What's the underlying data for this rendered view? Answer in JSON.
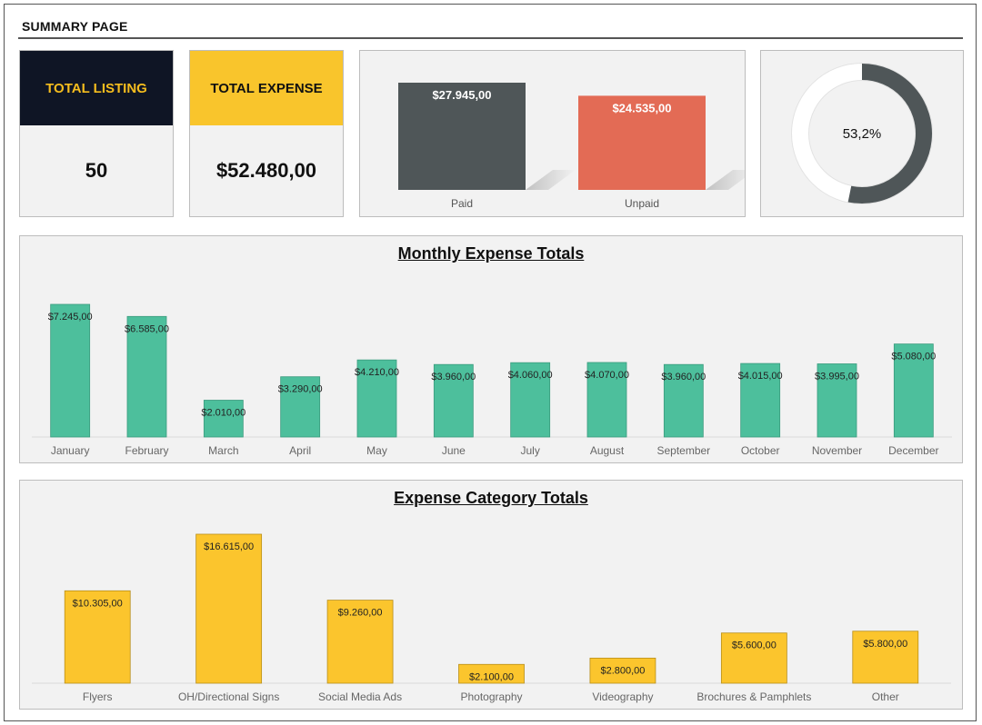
{
  "page": {
    "title": "SUMMARY PAGE"
  },
  "kpis": {
    "total_listing": {
      "label": "TOTAL LISTING",
      "value": "50"
    },
    "total_expense": {
      "label": "TOTAL EXPENSE",
      "value": "$52.480,00"
    }
  },
  "colors": {
    "paid": "#4f5658",
    "unpaid": "#e36b55",
    "monthly": "#4dbf9c",
    "category": "#fbc52d",
    "donut_track": "#ffffff",
    "donut_fill": "#4f5658"
  },
  "chart_data": [
    {
      "id": "paid-unpaid",
      "type": "bar",
      "title": "",
      "categories": [
        "Paid",
        "Unpaid"
      ],
      "values": [
        27945,
        24535
      ],
      "value_labels": [
        "$27.945,00",
        "$24.535,00"
      ],
      "ylim": [
        0,
        27945
      ],
      "grid": false
    },
    {
      "id": "paid-ratio",
      "type": "pie",
      "title": "",
      "values": [
        53.2,
        46.8
      ],
      "center_label": "53,2%"
    },
    {
      "id": "monthly",
      "type": "bar",
      "title": "Monthly Expense Totals",
      "xlabel": "",
      "ylabel": "",
      "categories": [
        "January",
        "February",
        "March",
        "April",
        "May",
        "June",
        "July",
        "August",
        "September",
        "October",
        "November",
        "December"
      ],
      "values": [
        7245,
        6585,
        2010,
        3290,
        4210,
        3960,
        4060,
        4070,
        3960,
        4015,
        3995,
        5080
      ],
      "value_labels": [
        "$7.245,00",
        "$6.585,00",
        "$2.010,00",
        "$3.290,00",
        "$4.210,00",
        "$3.960,00",
        "$4.060,00",
        "$4.070,00",
        "$3.960,00",
        "$4.015,00",
        "$3.995,00",
        "$5.080,00"
      ],
      "ylim": [
        0,
        7245
      ],
      "grid": false
    },
    {
      "id": "category",
      "type": "bar",
      "title": "Expense Category Totals",
      "xlabel": "",
      "ylabel": "",
      "categories": [
        "Flyers",
        "OH/Directional Signs",
        "Social Media Ads",
        "Photography",
        "Videography",
        "Brochures & Pamphlets",
        "Other"
      ],
      "values": [
        10305,
        16615,
        9260,
        2100,
        2800,
        5600,
        5800
      ],
      "value_labels": [
        "$10.305,00",
        "$16.615,00",
        "$9.260,00",
        "$2.100,00",
        "$2.800,00",
        "$5.600,00",
        "$5.800,00"
      ],
      "ylim": [
        0,
        16615
      ],
      "grid": false
    }
  ]
}
